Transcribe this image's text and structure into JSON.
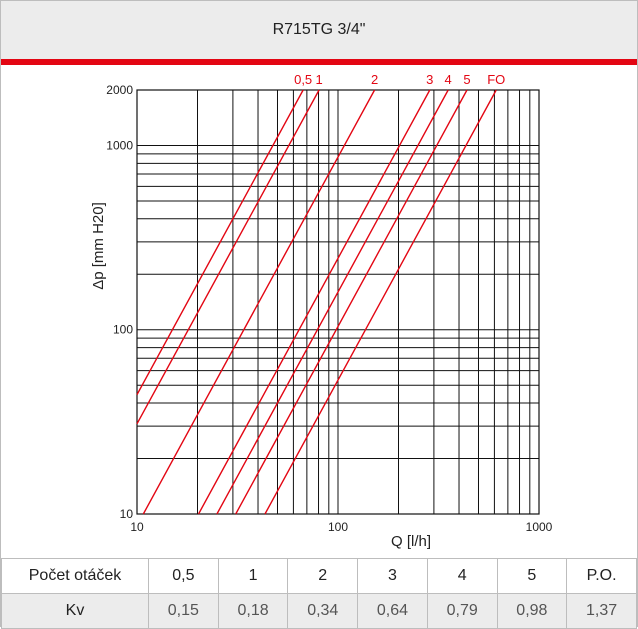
{
  "title": "R715TG  3/4\"",
  "accent_color": "#e30613",
  "chart_data": {
    "type": "line",
    "xscale": "log",
    "yscale": "log",
    "xlim": [
      10,
      1000
    ],
    "ylim": [
      10,
      2000
    ],
    "xlabel": "Q [l/h]",
    "ylabel": "Δp [mm H20]",
    "x_ticks": [
      "10",
      "100",
      "1000"
    ],
    "y_ticks": [
      "10",
      "100",
      "1000",
      "2000"
    ],
    "grid": true,
    "series": [
      {
        "name": "0,5",
        "kv": 0.15
      },
      {
        "name": "1",
        "kv": 0.18
      },
      {
        "name": "2",
        "kv": 0.34
      },
      {
        "name": "3",
        "kv": 0.64
      },
      {
        "name": "4",
        "kv": 0.79
      },
      {
        "name": "5",
        "kv": 0.98
      },
      {
        "name": "FO",
        "kv": 1.37
      }
    ]
  },
  "table": {
    "row_label_turns": "Počet otáček",
    "row_label_kv": "Kv",
    "turns": [
      "0,5",
      "1",
      "2",
      "3",
      "4",
      "5",
      "P.O."
    ],
    "kv": [
      "0,15",
      "0,18",
      "0,34",
      "0,64",
      "0,79",
      "0,98",
      "1,37"
    ]
  }
}
